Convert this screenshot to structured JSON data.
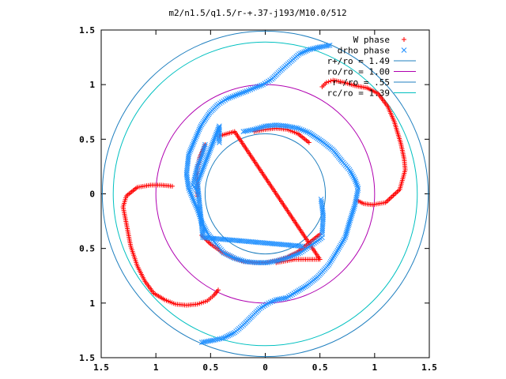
{
  "chart_data": {
    "type": "scatter",
    "title": "m2/n1.5/q1.5/r-+.37-j193/M10.0/512",
    "xlim": [
      -1.5,
      1.5
    ],
    "ylim": [
      -1.5,
      1.5
    ],
    "x_ticks": [
      -1.5,
      -1,
      -0.5,
      0,
      0.5,
      1,
      1.5
    ],
    "y_ticks": [
      -1.5,
      -1,
      -0.5,
      0,
      0.5,
      1,
      1.5
    ],
    "x_tick_labels": [
      "1.5",
      "1",
      "0.5",
      "0",
      "0.5",
      "1",
      "1.5"
    ],
    "y_tick_labels": [
      "1.5",
      "1",
      "0.5",
      "0",
      "0.5",
      "1",
      "1.5"
    ],
    "legend_position": "top-right",
    "grid": false,
    "series": [
      {
        "name": "W phase",
        "kind": "points",
        "marker": "plus",
        "color": "#ff0000",
        "curves": [
          [
            [
              0.52,
              0.98
            ],
            [
              0.56,
              1.02
            ],
            [
              0.62,
              1.04
            ],
            [
              0.72,
              1.02
            ],
            [
              0.82,
              0.99
            ],
            [
              0.93,
              0.97
            ],
            [
              1.03,
              0.92
            ],
            [
              1.12,
              0.8
            ],
            [
              1.18,
              0.66
            ],
            [
              1.24,
              0.46
            ],
            [
              1.27,
              0.32
            ],
            [
              1.28,
              0.22
            ],
            [
              1.23,
              0.04
            ],
            [
              1.1,
              -0.08
            ],
            [
              0.98,
              -0.1
            ],
            [
              0.9,
              -0.09
            ],
            [
              0.84,
              -0.06
            ]
          ],
          [
            [
              -0.43,
              -0.88
            ],
            [
              -0.47,
              -0.93
            ],
            [
              -0.53,
              -0.98
            ],
            [
              -0.62,
              -1.01
            ],
            [
              -0.72,
              -1.02
            ],
            [
              -0.82,
              -1.01
            ],
            [
              -0.92,
              -0.97
            ],
            [
              -1.02,
              -0.91
            ],
            [
              -1.1,
              -0.8
            ],
            [
              -1.17,
              -0.66
            ],
            [
              -1.23,
              -0.48
            ],
            [
              -1.28,
              -0.22
            ],
            [
              -1.3,
              -0.12
            ],
            [
              -1.27,
              -0.02
            ],
            [
              -1.17,
              0.06
            ],
            [
              -1.05,
              0.08
            ],
            [
              -0.95,
              0.08
            ],
            [
              -0.85,
              0.07
            ]
          ],
          [
            [
              -0.55,
              0.45
            ],
            [
              -0.6,
              0.33
            ],
            [
              -0.62,
              0.22
            ],
            [
              -0.62,
              0.12
            ],
            [
              -0.62,
              0.05
            ],
            [
              -0.62,
              -0.02
            ]
          ],
          [
            [
              -0.1,
              0.57
            ],
            [
              0.0,
              0.59
            ],
            [
              0.1,
              0.6
            ],
            [
              0.2,
              0.59
            ],
            [
              0.3,
              0.55
            ],
            [
              0.4,
              0.47
            ]
          ],
          [
            [
              0.5,
              -0.37
            ],
            [
              0.4,
              -0.45
            ],
            [
              0.3,
              -0.53
            ],
            [
              0.2,
              -0.58
            ],
            [
              0.1,
              -0.61
            ],
            [
              0.0,
              -0.63
            ],
            [
              -0.1,
              -0.63
            ],
            [
              -0.2,
              -0.62
            ],
            [
              -0.3,
              -0.58
            ],
            [
              -0.4,
              -0.53
            ],
            [
              -0.5,
              -0.46
            ],
            [
              -0.58,
              -0.38
            ]
          ],
          [
            [
              -0.42,
              0.53
            ],
            [
              -0.28,
              0.57
            ],
            [
              0.38,
              -0.42
            ],
            [
              0.5,
              -0.6
            ],
            [
              0.27,
              -0.6
            ],
            [
              0.1,
              -0.63
            ]
          ]
        ]
      },
      {
        "name": "drho phase",
        "kind": "points",
        "marker": "cross",
        "color": "#1f8fff",
        "curves": [
          [
            [
              0.59,
              1.36
            ],
            [
              0.48,
              1.34
            ],
            [
              0.4,
              1.32
            ],
            [
              0.31,
              1.28
            ],
            [
              0.22,
              1.2
            ],
            [
              0.13,
              1.12
            ],
            [
              0.06,
              1.05
            ],
            [
              -0.02,
              1.0
            ],
            [
              -0.1,
              0.97
            ],
            [
              -0.17,
              0.94
            ],
            [
              -0.25,
              0.91
            ],
            [
              -0.35,
              0.87
            ],
            [
              -0.43,
              0.82
            ],
            [
              -0.51,
              0.74
            ],
            [
              -0.59,
              0.62
            ],
            [
              -0.65,
              0.48
            ],
            [
              -0.7,
              0.36
            ],
            [
              -0.72,
              0.18
            ],
            [
              -0.7,
              0.05
            ],
            [
              -0.66,
              -0.05
            ],
            [
              -0.62,
              -0.14
            ],
            [
              -0.58,
              -0.26
            ],
            [
              -0.53,
              -0.36
            ],
            [
              -0.45,
              -0.46
            ],
            [
              -0.38,
              -0.54
            ]
          ],
          [
            [
              -0.58,
              -1.36
            ],
            [
              -0.47,
              -1.34
            ],
            [
              -0.38,
              -1.32
            ],
            [
              -0.28,
              -1.27
            ],
            [
              -0.2,
              -1.2
            ],
            [
              -0.12,
              -1.12
            ],
            [
              -0.05,
              -1.05
            ],
            [
              0.03,
              -1.0
            ],
            [
              0.1,
              -0.97
            ],
            [
              0.2,
              -0.95
            ],
            [
              0.28,
              -0.9
            ],
            [
              0.38,
              -0.84
            ],
            [
              0.48,
              -0.76
            ],
            [
              0.58,
              -0.65
            ],
            [
              0.66,
              -0.52
            ],
            [
              0.73,
              -0.4
            ],
            [
              0.77,
              -0.26
            ],
            [
              0.82,
              -0.1
            ],
            [
              0.85,
              0.05
            ],
            [
              0.82,
              0.13
            ],
            [
              0.77,
              0.22
            ],
            [
              0.7,
              0.3
            ],
            [
              0.62,
              0.4
            ],
            [
              0.52,
              0.48
            ],
            [
              0.4,
              0.56
            ],
            [
              0.3,
              0.6
            ],
            [
              0.2,
              0.62
            ],
            [
              0.1,
              0.63
            ],
            [
              0.0,
              0.62
            ],
            [
              -0.1,
              0.59
            ],
            [
              -0.2,
              0.57
            ]
          ],
          [
            [
              0.52,
              -0.4
            ],
            [
              0.42,
              -0.47
            ],
            [
              0.32,
              -0.54
            ],
            [
              0.22,
              -0.58
            ],
            [
              0.12,
              -0.61
            ],
            [
              0.02,
              -0.63
            ],
            [
              -0.08,
              -0.63
            ],
            [
              -0.18,
              -0.62
            ],
            [
              -0.28,
              -0.59
            ],
            [
              -0.38,
              -0.54
            ]
          ],
          [
            [
              0.52,
              -0.37
            ],
            [
              0.53,
              -0.2
            ],
            [
              0.52,
              -0.12
            ],
            [
              0.51,
              -0.05
            ]
          ],
          [
            [
              -0.55,
              0.45
            ],
            [
              -0.58,
              0.35
            ],
            [
              -0.62,
              0.25
            ],
            [
              -0.64,
              0.17
            ],
            [
              -0.66,
              0.08
            ],
            [
              -0.62,
              0.02
            ]
          ],
          [
            [
              -0.42,
              0.47
            ],
            [
              -0.42,
              0.62
            ],
            [
              -0.62,
              0.1
            ],
            [
              -0.57,
              -0.4
            ],
            [
              0.34,
              -0.48
            ]
          ]
        ]
      },
      {
        "name": "r+/ro = 1.49",
        "kind": "circle",
        "radius": 1.49,
        "color": "#1f7fbf"
      },
      {
        "name": "ro/ro = 1.00",
        "kind": "circle",
        "radius": 1.0,
        "color": "#b000b0"
      },
      {
        "name": "r-/ro = .55",
        "kind": "circle",
        "radius": 0.55,
        "color": "#1f7fbf"
      },
      {
        "name": "rc/ro = 1.39",
        "kind": "circle",
        "radius": 1.39,
        "color": "#00c0c0"
      }
    ]
  }
}
